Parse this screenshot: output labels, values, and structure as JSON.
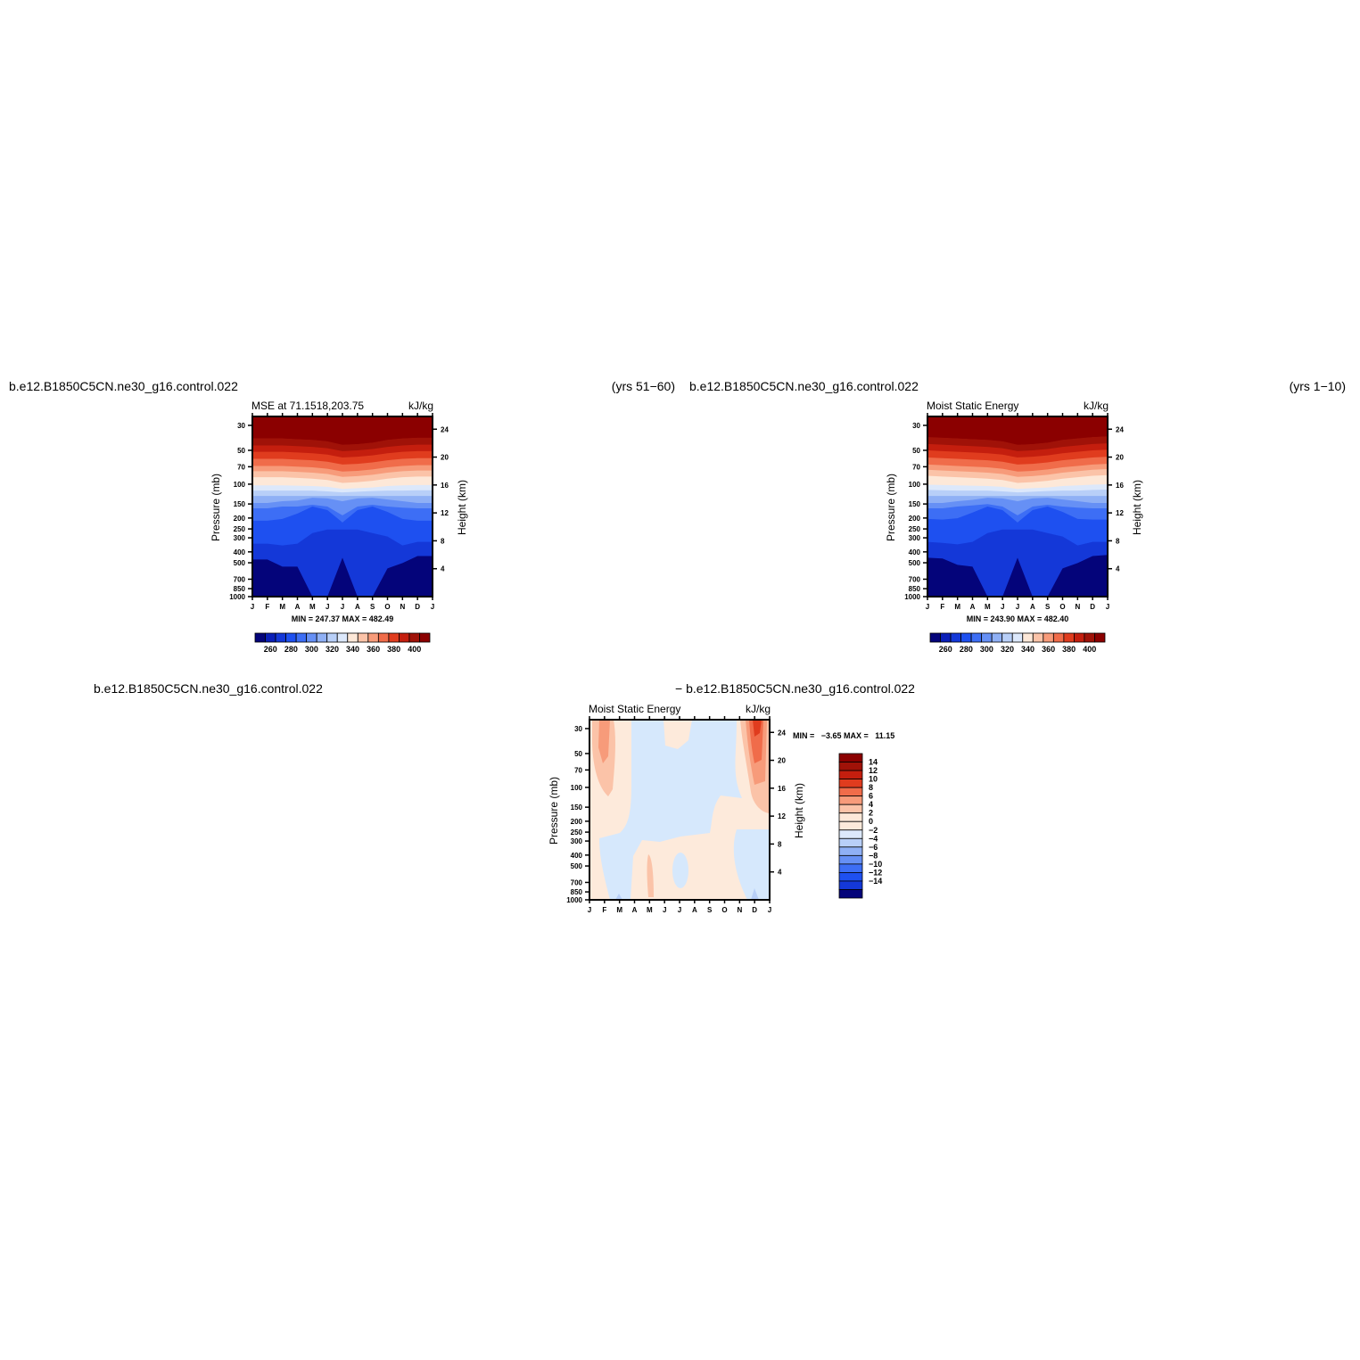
{
  "page": {
    "headers": {
      "top_left_case": "b.e12.B1850C5CN.ne30_g16.control.022",
      "top_left_years": "(yrs 51−60)",
      "top_right_case": "b.e12.B1850C5CN.ne30_g16.control.022",
      "top_right_years": "(yrs 1−10)",
      "bottom_left_case": "b.e12.B1850C5CN.ne30_g16.control.022",
      "bottom_diff_case": "− b.e12.B1850C5CN.ne30_g16.control.022"
    }
  },
  "chart_data": [
    {
      "id": "panel1",
      "type": "heatmap",
      "title": "MSE at 71.1518,203.75",
      "units": "kJ/kg",
      "ylabel": "Pressure (mb)",
      "y2label": "Height (km)",
      "x_ticks": [
        "J",
        "F",
        "M",
        "A",
        "M",
        "J",
        "J",
        "A",
        "S",
        "O",
        "N",
        "D",
        "J"
      ],
      "y_ticks": [
        30,
        50,
        70,
        100,
        150,
        200,
        250,
        300,
        400,
        500,
        700,
        850,
        1000
      ],
      "y2_ticks": [
        4,
        8,
        12,
        16,
        20,
        24
      ],
      "ylim": [
        1000,
        25
      ],
      "minmax": "MIN = 247.37 MAX = 482.49",
      "colorbar": {
        "orientation": "horizontal",
        "levels": [
          250,
          260,
          270,
          280,
          290,
          300,
          310,
          320,
          330,
          340,
          350,
          360,
          370,
          380,
          390,
          400
        ],
        "labels": [
          "260",
          "280",
          "300",
          "320",
          "340",
          "360",
          "380",
          "400"
        ],
        "colors": [
          "#04047a",
          "#0a1fb8",
          "#1438d8",
          "#1e50f0",
          "#3d6ef5",
          "#6690f5",
          "#8fb0f5",
          "#b8cff8",
          "#dce8fb",
          "#fde8d8",
          "#fbc3a8",
          "#f79b7a",
          "#f06c4a",
          "#e03c1e",
          "#c41e0e",
          "#a01208",
          "#8b0000"
        ]
      },
      "levels_by_month": [
        [
          62,
          82,
          100,
          120,
          140,
          155,
          172,
          195,
          210,
          225,
          245,
          260,
          295,
          360,
          405
        ],
        [
          62,
          82,
          100,
          120,
          140,
          155,
          172,
          195,
          210,
          225,
          245,
          260,
          295,
          360,
          405
        ],
        [
          62,
          82,
          100,
          120,
          140,
          155,
          172,
          195,
          210,
          225,
          240,
          255,
          290,
          365,
          425
        ],
        [
          64,
          84,
          102,
          122,
          142,
          157,
          174,
          196,
          210,
          225,
          238,
          255,
          275,
          360,
          425
        ],
        [
          66,
          86,
          104,
          124,
          144,
          159,
          176,
          197,
          210,
          225,
          230,
          250,
          255,
          330,
          510
        ],
        [
          70,
          90,
          108,
          128,
          148,
          163,
          180,
          199,
          212,
          225,
          232,
          255,
          265,
          320,
          510
        ],
        [
          80,
          98,
          116,
          136,
          156,
          171,
          188,
          205,
          215,
          225,
          240,
          280,
          300,
          320,
          400
        ],
        [
          78,
          96,
          114,
          134,
          154,
          169,
          186,
          203,
          213,
          225,
          232,
          255,
          265,
          320,
          510
        ],
        [
          74,
          92,
          110,
          130,
          150,
          165,
          182,
          201,
          211,
          225,
          230,
          250,
          255,
          330,
          510
        ],
        [
          66,
          86,
          104,
          124,
          144,
          159,
          176,
          197,
          210,
          225,
          235,
          255,
          270,
          340,
          430
        ],
        [
          62,
          82,
          100,
          120,
          140,
          155,
          172,
          195,
          210,
          225,
          240,
          258,
          290,
          365,
          415
        ],
        [
          60,
          80,
          98,
          118,
          138,
          153,
          170,
          194,
          209,
          225,
          245,
          260,
          295,
          355,
          395
        ],
        [
          60,
          80,
          98,
          118,
          138,
          153,
          170,
          194,
          209,
          225,
          245,
          260,
          295,
          355,
          395
        ]
      ]
    },
    {
      "id": "panel2",
      "type": "heatmap",
      "title": "Moist Static Energy",
      "units": "kJ/kg",
      "ylabel": "Pressure (mb)",
      "y2label": "Height (km)",
      "x_ticks": [
        "J",
        "F",
        "M",
        "A",
        "M",
        "J",
        "J",
        "A",
        "S",
        "O",
        "N",
        "D",
        "J"
      ],
      "y_ticks": [
        30,
        50,
        70,
        100,
        150,
        200,
        250,
        300,
        400,
        500,
        700,
        850,
        1000
      ],
      "y2_ticks": [
        4,
        8,
        12,
        16,
        20,
        24
      ],
      "ylim": [
        1000,
        25
      ],
      "minmax": "MIN = 243.90 MAX = 482.40",
      "colorbar": {
        "orientation": "horizontal",
        "levels": [
          250,
          260,
          270,
          280,
          290,
          300,
          310,
          320,
          330,
          340,
          350,
          360,
          370,
          380,
          390,
          400
        ],
        "labels": [
          "260",
          "280",
          "300",
          "320",
          "340",
          "360",
          "380",
          "400"
        ],
        "colors": [
          "#04047a",
          "#0a1fb8",
          "#1438d8",
          "#1e50f0",
          "#3d6ef5",
          "#6690f5",
          "#8fb0f5",
          "#b8cff8",
          "#dce8fb",
          "#fde8d8",
          "#fbc3a8",
          "#f79b7a",
          "#f06c4a",
          "#e03c1e",
          "#c41e0e",
          "#a01208",
          "#8b0000"
        ]
      },
      "levels_by_month": [
        [
          58,
          78,
          96,
          116,
          136,
          151,
          168,
          193,
          208,
          225,
          245,
          260,
          290,
          355,
          400
        ],
        [
          60,
          80,
          98,
          118,
          138,
          153,
          170,
          194,
          209,
          225,
          245,
          260,
          292,
          358,
          402
        ],
        [
          62,
          82,
          100,
          120,
          140,
          155,
          172,
          195,
          210,
          225,
          240,
          255,
          288,
          362,
          420
        ],
        [
          64,
          84,
          102,
          122,
          142,
          157,
          174,
          196,
          210,
          225,
          236,
          252,
          272,
          355,
          425
        ],
        [
          66,
          86,
          104,
          124,
          144,
          159,
          176,
          197,
          210,
          225,
          230,
          248,
          255,
          330,
          510
        ],
        [
          70,
          90,
          108,
          128,
          148,
          163,
          180,
          199,
          212,
          225,
          232,
          255,
          265,
          320,
          510
        ],
        [
          80,
          98,
          116,
          136,
          156,
          171,
          188,
          205,
          215,
          225,
          240,
          280,
          300,
          320,
          400
        ],
        [
          78,
          96,
          114,
          134,
          154,
          169,
          186,
          203,
          213,
          225,
          232,
          255,
          265,
          320,
          510
        ],
        [
          74,
          92,
          110,
          130,
          150,
          165,
          182,
          201,
          211,
          225,
          230,
          250,
          255,
          330,
          510
        ],
        [
          66,
          86,
          104,
          124,
          144,
          159,
          176,
          197,
          210,
          225,
          235,
          255,
          270,
          340,
          430
        ],
        [
          62,
          82,
          100,
          120,
          140,
          155,
          172,
          195,
          210,
          225,
          240,
          258,
          290,
          365,
          415
        ],
        [
          58,
          78,
          96,
          116,
          136,
          151,
          168,
          193,
          208,
          225,
          245,
          260,
          292,
          355,
          395
        ],
        [
          56,
          76,
          94,
          114,
          134,
          149,
          166,
          192,
          207,
          225,
          245,
          260,
          292,
          355,
          392
        ]
      ]
    },
    {
      "id": "diff",
      "type": "heatmap",
      "title": "Moist Static Energy",
      "units": "kJ/kg",
      "ylabel": "Pressure (mb)",
      "y2label": "Height (km)",
      "x_ticks": [
        "J",
        "F",
        "M",
        "A",
        "M",
        "J",
        "J",
        "A",
        "S",
        "O",
        "N",
        "D",
        "J"
      ],
      "y_ticks": [
        30,
        50,
        70,
        100,
        150,
        200,
        250,
        300,
        400,
        500,
        700,
        850,
        1000
      ],
      "y2_ticks": [
        4,
        8,
        12,
        16,
        20,
        24
      ],
      "ylim": [
        1000,
        25
      ],
      "minmax": "MIN =   −3.65 MAX =   11.15",
      "colorbar": {
        "orientation": "vertical",
        "levels": [
          -14,
          -12,
          -10,
          -8,
          -6,
          -4,
          -2,
          0,
          2,
          4,
          6,
          8,
          10,
          12,
          14
        ],
        "labels": [
          "14",
          "12",
          "10",
          "8",
          "6",
          "4",
          "2",
          "0",
          "−2",
          "−4",
          "−6",
          "−8",
          "−10",
          "−12",
          "−14"
        ],
        "colors": [
          "#8b0000",
          "#a01208",
          "#c41e0e",
          "#e03c1e",
          "#f06c4a",
          "#f79b7a",
          "#fbc3a8",
          "#fde8d8",
          "#fdeadb",
          "#dce8fb",
          "#b8cff8",
          "#8fb0f5",
          "#6690f5",
          "#3d6ef5",
          "#1e50f0",
          "#1438d8",
          "#04047a"
        ]
      }
    }
  ]
}
